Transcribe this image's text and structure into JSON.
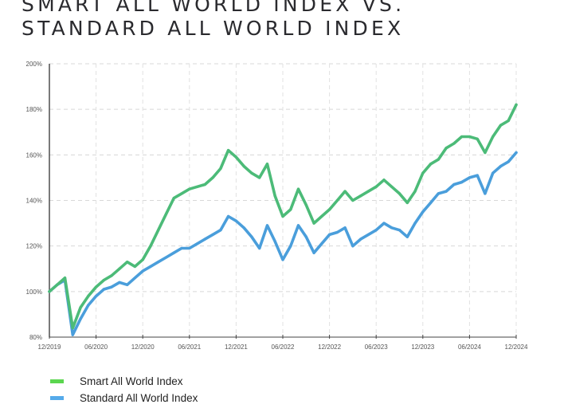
{
  "chart_data": {
    "type": "line",
    "title_lines": [
      "SMART ALL WORLD INDEX VS.",
      "STANDARD ALL WORLD INDEX"
    ],
    "xlabel": "",
    "ylabel": "",
    "x_start": "12/2019",
    "x_end": "12/2024",
    "x_frequency": "monthly",
    "xticks": [
      "12/2019",
      "06/2020",
      "12/2020",
      "06/2021",
      "12/2021",
      "06/2022",
      "12/2022",
      "06/2023",
      "12/2023",
      "06/2024",
      "12/2024"
    ],
    "yticks": [
      "80%",
      "100%",
      "120%",
      "140%",
      "160%",
      "180%",
      "200%"
    ],
    "ytick_values": [
      80,
      100,
      120,
      140,
      160,
      180,
      200
    ],
    "ylim": [
      80,
      200
    ],
    "grid": true,
    "legend_position": "bottom-left",
    "series": [
      {
        "name": "Smart All World Index",
        "color": "#4cbb78",
        "legend_color": "#5bd64f",
        "values": [
          100,
          103,
          106,
          84,
          93,
          98,
          102,
          105,
          107,
          110,
          113,
          111,
          114,
          120,
          127,
          134,
          141,
          143,
          145,
          146,
          147,
          150,
          154,
          162,
          159,
          155,
          152,
          150,
          156,
          142,
          133,
          136,
          145,
          138,
          130,
          133,
          136,
          140,
          144,
          140,
          142,
          144,
          146,
          149,
          146,
          143,
          139,
          144,
          152,
          156,
          158,
          163,
          165,
          168,
          168,
          167,
          161,
          168,
          173,
          175,
          182
        ]
      },
      {
        "name": "Standard All World Index",
        "color": "#4a9edb",
        "legend_color": "#55aaea",
        "values": [
          100,
          103,
          105,
          81,
          88,
          94,
          98,
          101,
          102,
          104,
          103,
          106,
          109,
          111,
          113,
          115,
          117,
          119,
          119,
          121,
          123,
          125,
          127,
          133,
          131,
          128,
          124,
          119,
          129,
          122,
          114,
          120,
          129,
          124,
          117,
          121,
          125,
          126,
          128,
          120,
          123,
          125,
          127,
          130,
          128,
          127,
          124,
          130,
          135,
          139,
          143,
          144,
          147,
          148,
          150,
          151,
          143,
          152,
          155,
          157,
          161
        ]
      }
    ]
  }
}
